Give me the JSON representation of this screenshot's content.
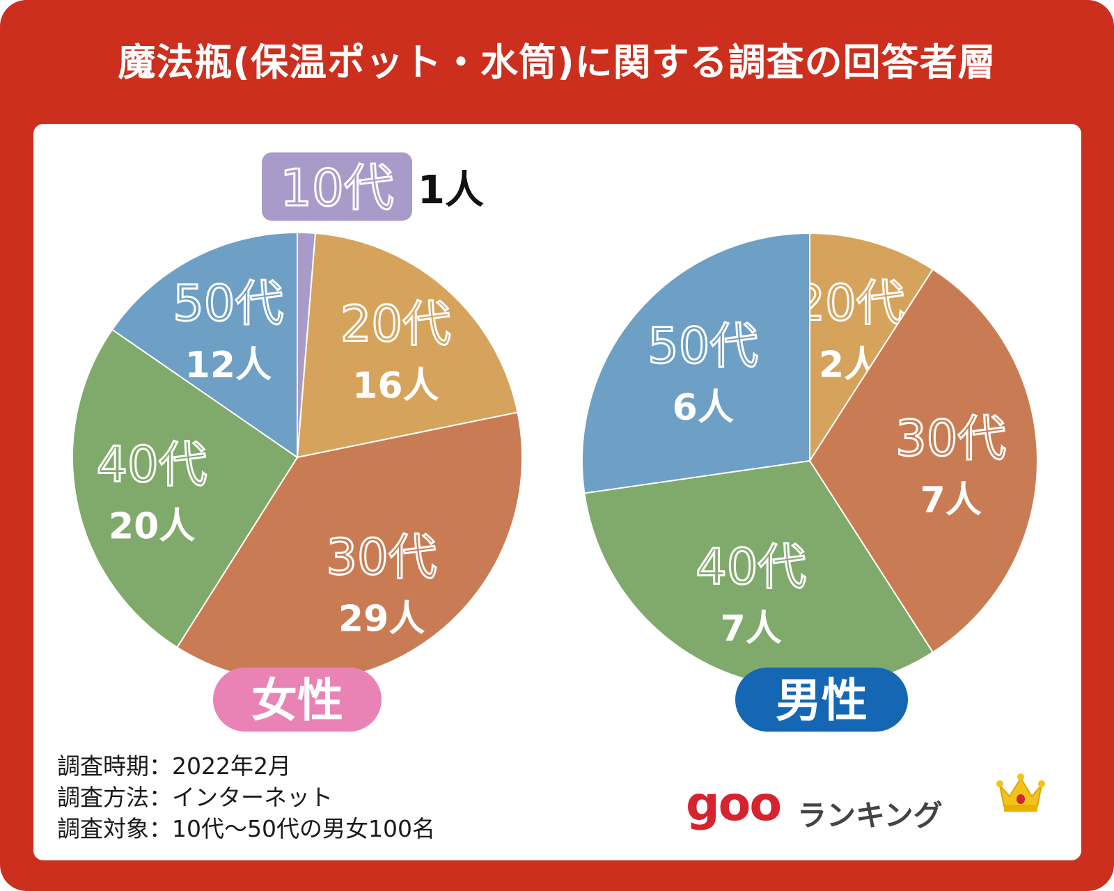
{
  "title": "魔法瓶(保温ポット・水筒)に関する調査の回答者層",
  "colors": {
    "frame": "#cc2f1d",
    "teens": "#a99bc9",
    "twenties": "#d6a35c",
    "thirties": "#c97c53",
    "forties": "#80aa6b",
    "fifties": "#6e9fc4",
    "female_badge": "#ea83b5",
    "male_badge": "#1567b3"
  },
  "chart_data": [
    {
      "type": "pie",
      "title": "女性",
      "categories": [
        "10代",
        "20代",
        "30代",
        "40代",
        "50代"
      ],
      "values": [
        1,
        16,
        29,
        20,
        12
      ],
      "data_labels": [
        "1人",
        "16人",
        "29人",
        "20人",
        "12人"
      ]
    },
    {
      "type": "pie",
      "title": "男性",
      "categories": [
        "20代",
        "30代",
        "40代",
        "50代"
      ],
      "values": [
        2,
        7,
        7,
        6
      ],
      "data_labels": [
        "2人",
        "7人",
        "7人",
        "6人"
      ]
    }
  ],
  "footer": {
    "period": "調査時期：2022年2月",
    "method": "調査方法：インターネット",
    "target": "調査対象：10代〜50代の男女100名"
  },
  "brand": {
    "logo": "goo",
    "text": "ランキング",
    "crown_icon": "crown-icon"
  }
}
